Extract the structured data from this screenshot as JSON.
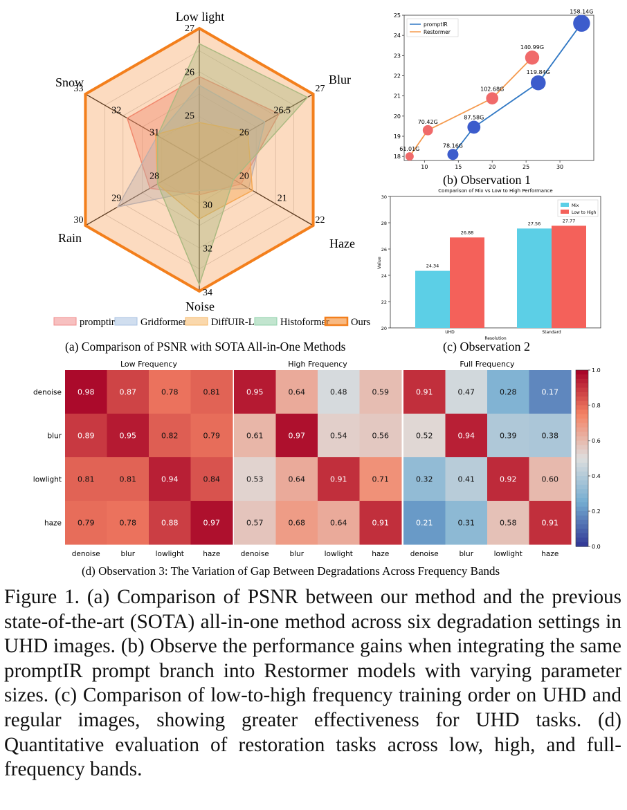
{
  "figure": {
    "panel_a_caption": "(a) Comparison of PSNR with SOTA All-in-One Methods",
    "panel_b_caption": "(b)  Observation 1",
    "panel_c_caption": "(c)  Observation 2",
    "panel_d_caption": "(d)  Observation 3: The Variation of Gap Between Degradations Across Frequency Bands",
    "caption": "Figure 1. (a) Comparison of PSNR between our method and the previous state-of-the-art (SOTA) all-in-one method across six degradation settings in UHD images. (b) Observe the performance gains when integrating the same promptIR prompt branch into Restormer models with varying parameter sizes. (c) Comparison of low-to-high frequency training order on UHD and regular images, showing greater effectiveness for UHD tasks. (d) Quantitative evaluation of restoration tasks across low, high, and full-frequency bands."
  },
  "chart_data": [
    {
      "type": "radar",
      "axes": [
        "Low light",
        "Blur",
        "Haze",
        "Noise",
        "Rain",
        "Snow"
      ],
      "axis_ranges": [
        [
          24,
          27
        ],
        [
          25,
          27
        ],
        [
          19,
          22
        ],
        [
          28,
          34
        ],
        [
          27,
          30
        ],
        [
          30,
          33
        ]
      ],
      "axis_ticks": [
        [
          "25",
          "26",
          "27"
        ],
        [
          "26",
          "26.5",
          "27"
        ],
        [
          "20",
          "21",
          "22"
        ],
        [
          "30",
          "32",
          "34"
        ],
        [
          "28",
          "29",
          "30"
        ],
        [
          "31",
          "32",
          "33"
        ]
      ],
      "series": [
        {
          "name": "promptir",
          "color": "#f08c8c",
          "values": [
            25.9,
            26.4,
            20.1,
            29.6,
            28.3,
            31.9
          ]
        },
        {
          "name": "Gridformer",
          "color": "#a9c2e2",
          "values": [
            25.7,
            26.15,
            20.3,
            29.4,
            29.15,
            31.1
          ]
        },
        {
          "name": "DiffUIR-L",
          "color": "#f5b868",
          "values": [
            24.85,
            25.85,
            20.4,
            30.7,
            28.1,
            31.15
          ]
        },
        {
          "name": "Histoformer",
          "color": "#8fd0a8",
          "values": [
            26.65,
            26.9,
            19.9,
            33.7,
            28.1,
            31.1
          ]
        },
        {
          "name": "Ours",
          "color": "#f37f1c",
          "values": [
            27,
            27,
            22,
            34,
            30,
            33
          ]
        }
      ]
    },
    {
      "type": "line",
      "xlim": [
        7,
        35
      ],
      "ylim": [
        17.8,
        25
      ],
      "xticks": [
        "10",
        "15",
        "20",
        "25",
        "30"
      ],
      "yticks": [
        "18",
        "19",
        "20",
        "21",
        "22",
        "23",
        "24",
        "25"
      ],
      "series": [
        {
          "name": "promptIR",
          "color": "#2f77c4",
          "x": [
            14.2,
            17.3,
            26.8,
            33.2
          ],
          "y": [
            18.1,
            19.45,
            21.65,
            24.6
          ],
          "labels": [
            "78.16G",
            "87.58G",
            "119.84G",
            "158.14G"
          ]
        },
        {
          "name": "Restormer",
          "color": "#f59a4e",
          "x": [
            7.8,
            10.5,
            20,
            25.9
          ],
          "y": [
            18.0,
            19.3,
            20.88,
            22.9
          ],
          "labels": [
            "61.01G",
            "70.42G",
            "102.68G",
            "140.99G"
          ]
        }
      ]
    },
    {
      "type": "bar",
      "title": "Comparison of Mix vs Low to High Performance",
      "xlabel": "Resolution",
      "ylabel": "Value",
      "categories": [
        "UHD",
        "Standard"
      ],
      "ylim": [
        20,
        30
      ],
      "yticks": [
        "20",
        "22",
        "24",
        "26",
        "28",
        "30"
      ],
      "series": [
        {
          "name": "Mix",
          "color": "#5ccfe6",
          "values": [
            24.34,
            27.56
          ],
          "labels": [
            "24.34",
            "27.56"
          ]
        },
        {
          "name": "Low to High",
          "color": "#f4615a",
          "values": [
            26.88,
            27.77
          ],
          "labels": [
            "26.88",
            "27.77"
          ]
        }
      ]
    },
    {
      "type": "heatmap",
      "rows": [
        "denoise",
        "blur",
        "lowlight",
        "haze"
      ],
      "cols": [
        "denoise",
        "blur",
        "lowlight",
        "haze"
      ],
      "colorbar_ticks": [
        "1.0",
        "0.8",
        "0.6",
        "0.4",
        "0.2",
        "0.0"
      ],
      "panels": [
        {
          "title": "Low Frequency",
          "values": [
            [
              0.98,
              0.87,
              0.78,
              0.81
            ],
            [
              0.89,
              0.95,
              0.82,
              0.79
            ],
            [
              0.81,
              0.81,
              0.94,
              0.84
            ],
            [
              0.79,
              0.78,
              0.88,
              0.97
            ]
          ],
          "labels": [
            [
              "0.98",
              "0.87",
              "0.78",
              "0.81"
            ],
            [
              "0.89",
              "0.95",
              "0.82",
              "0.79"
            ],
            [
              "0.81",
              "0.81",
              "0.94",
              "0.84"
            ],
            [
              "0.79",
              "0.78",
              "0.88",
              "0.97"
            ]
          ]
        },
        {
          "title": "High Frequency",
          "values": [
            [
              0.95,
              0.64,
              0.48,
              0.59
            ],
            [
              0.61,
              0.97,
              0.54,
              0.56
            ],
            [
              0.53,
              0.64,
              0.91,
              0.71
            ],
            [
              0.57,
              0.68,
              0.64,
              0.91
            ]
          ],
          "labels": [
            [
              "0.95",
              "0.64",
              "0.48",
              "0.59"
            ],
            [
              "0.61",
              "0.97",
              "0.54",
              "0.56"
            ],
            [
              "0.53",
              "0.64",
              "0.91",
              "0.71"
            ],
            [
              "0.57",
              "0.68",
              "0.64",
              "0.91"
            ]
          ]
        },
        {
          "title": "Full Frequency",
          "values": [
            [
              0.91,
              0.47,
              0.28,
              0.17
            ],
            [
              0.52,
              0.94,
              0.39,
              0.38
            ],
            [
              0.32,
              0.41,
              0.92,
              0.6
            ],
            [
              0.21,
              0.31,
              0.58,
              0.91
            ]
          ],
          "labels": [
            [
              "0.91",
              "0.47",
              "0.28",
              "0.17"
            ],
            [
              "0.52",
              "0.94",
              "0.39",
              "0.38"
            ],
            [
              "0.32",
              "0.41",
              "0.92",
              "0.60"
            ],
            [
              "0.21",
              "0.31",
              "0.58",
              "0.91"
            ]
          ]
        }
      ]
    }
  ]
}
